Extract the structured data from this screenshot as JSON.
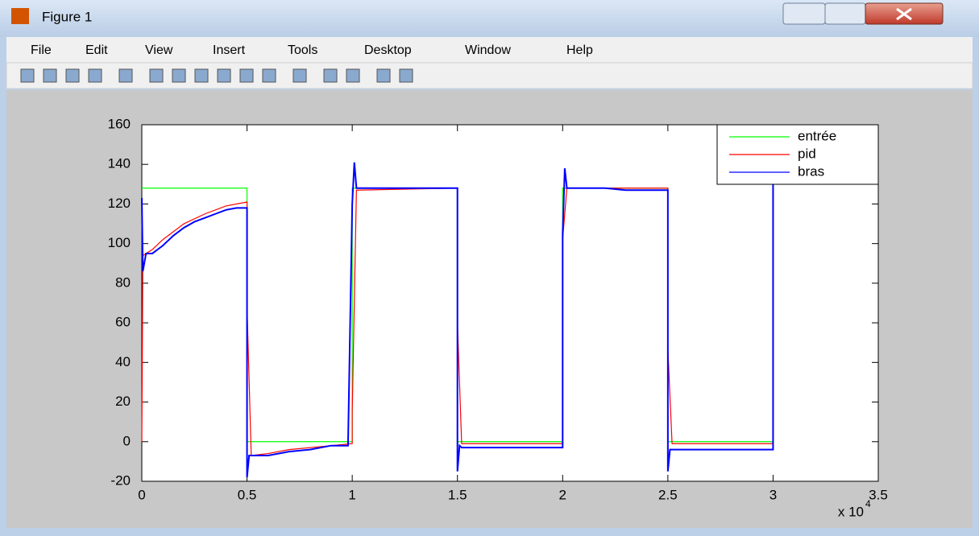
{
  "window": {
    "title": "Figure 1",
    "menu": [
      "File",
      "Edit",
      "View",
      "Insert",
      "Tools",
      "Desktop",
      "Window",
      "Help"
    ]
  },
  "chart_data": {
    "type": "line",
    "xlim": [
      0,
      3.5
    ],
    "xticks": [
      0,
      0.5,
      1,
      1.5,
      2,
      2.5,
      3,
      3.5
    ],
    "x_multiplier": {
      "base": "x 10",
      "exponent": "4"
    },
    "ylim": [
      -20,
      160
    ],
    "yticks": [
      -20,
      0,
      20,
      40,
      60,
      80,
      100,
      120,
      140,
      160
    ],
    "grid": false,
    "legend": "northeast",
    "series": [
      {
        "name": "entrée",
        "color": "#00ff00",
        "x": [
          0,
          0.5,
          0.5,
          1.0,
          1.0,
          1.5,
          1.5,
          2.0,
          2.0,
          2.5,
          2.5,
          3.0,
          3.0
        ],
        "values": [
          128,
          128,
          0,
          0,
          128,
          128,
          0,
          0,
          128,
          128,
          0,
          0,
          128
        ]
      },
      {
        "name": "pid",
        "color": "#ff0000",
        "x": [
          0,
          0.005,
          0.05,
          0.1,
          0.2,
          0.3,
          0.4,
          0.5,
          0.5,
          0.52,
          0.6,
          0.7,
          0.8,
          0.9,
          1.0,
          1.0,
          1.02,
          1.5,
          1.5,
          1.52,
          2.0,
          2.0,
          2.02,
          2.5,
          2.5,
          2.52,
          3.0,
          3.0
        ],
        "values": [
          0,
          94,
          97,
          102,
          110,
          115,
          119,
          121,
          68,
          -7,
          -6,
          -4,
          -3,
          -2,
          -1,
          15,
          127,
          128,
          60,
          -1,
          -1,
          102,
          128,
          128,
          47,
          -1,
          -1,
          38
        ]
      },
      {
        "name": "bras",
        "color": "#0000ff",
        "x": [
          0,
          0.005,
          0.02,
          0.05,
          0.1,
          0.15,
          0.2,
          0.25,
          0.3,
          0.35,
          0.4,
          0.45,
          0.5,
          0.5,
          0.51,
          0.6,
          0.7,
          0.8,
          0.9,
          0.98,
          1.0,
          1.01,
          1.02,
          1.1,
          1.2,
          1.3,
          1.4,
          1.5,
          1.5,
          1.51,
          1.52,
          1.6,
          1.8,
          2.0,
          2.0,
          2.01,
          2.02,
          2.2,
          2.3,
          2.5,
          2.5,
          2.51,
          2.52,
          2.7,
          2.9,
          3.0,
          3.0
        ],
        "values": [
          123,
          86,
          95,
          95,
          99,
          104,
          108,
          111,
          113,
          115,
          117,
          118,
          118,
          -18,
          -7,
          -7,
          -5,
          -4,
          -2,
          -2,
          120,
          141,
          128,
          128,
          128,
          128,
          128,
          128,
          -15,
          -2,
          -3,
          -3,
          -3,
          -3,
          105,
          138,
          128,
          128,
          127,
          127,
          -15,
          -4,
          -4,
          -4,
          -4,
          -4,
          130
        ]
      }
    ]
  }
}
